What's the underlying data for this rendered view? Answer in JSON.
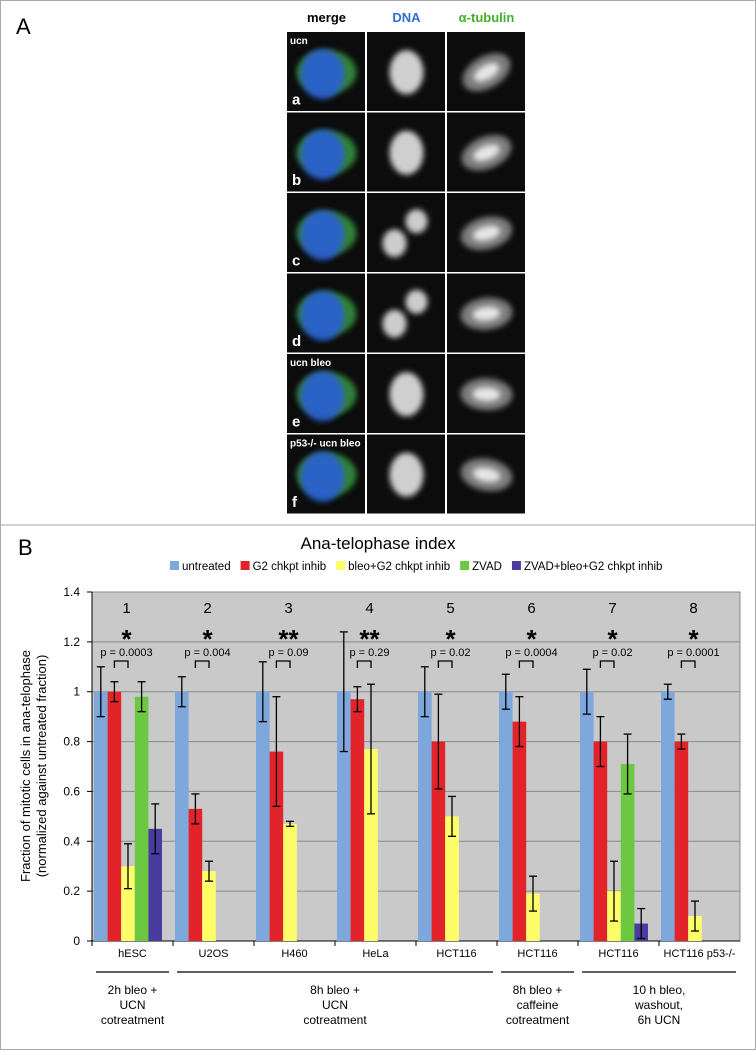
{
  "panel_a": {
    "label": "A",
    "columns": [
      "merge",
      "DNA",
      "α-tubulin"
    ],
    "rows": [
      {
        "letter": "a",
        "label": "ucn"
      },
      {
        "letter": "b"
      },
      {
        "letter": "c"
      },
      {
        "letter": "d"
      },
      {
        "letter": "e",
        "label": "ucn bleo"
      },
      {
        "letter": "f",
        "label": "p53-/- ucn bleo"
      }
    ]
  },
  "panel_b_label": "B",
  "chart_data": {
    "type": "bar",
    "title": "Ana-telophase index",
    "y_label": [
      "Fraction of mitotic cells in ana-telophase",
      "(normalized against untreated fraction)"
    ],
    "categories": [
      "hESC",
      "U2OS",
      "H460",
      "HeLa",
      "HCT116",
      "HCT116",
      "HCT116",
      "HCT116 p53-/-"
    ],
    "group_labels": [
      1,
      2,
      3,
      4,
      5,
      6,
      7,
      8
    ],
    "stars": [
      "*",
      "*",
      "**",
      "**",
      "*",
      "*",
      "*",
      "*"
    ],
    "p_values": [
      "p = 0.0003",
      "p = 0.004",
      "p = 0.09",
      "p = 0.29",
      "p = 0.02",
      "p = 0.0004",
      "p = 0.02",
      "p = 0.0001"
    ],
    "treatments": [
      [
        "2h bleo +",
        "UCN",
        "cotreatment"
      ],
      [
        "8h bleo +",
        "UCN",
        "cotreatment"
      ],
      [
        "8h bleo +",
        "caffeine",
        "cotreatment"
      ],
      [
        "10 h bleo,",
        "washout,",
        "6h UCN"
      ]
    ],
    "series": [
      {
        "name": "untreated",
        "color": "#7ea7dc",
        "values": [
          1,
          1,
          1,
          1,
          1,
          1,
          1,
          1
        ],
        "errors": [
          0.1,
          0.06,
          0.12,
          0.24,
          0.1,
          0.07,
          0.09,
          0.03
        ]
      },
      {
        "name": "G2 chkpt inhib",
        "color": "#e3232a",
        "values": [
          1,
          0.53,
          0.76,
          0.97,
          0.8,
          0.88,
          0.8,
          0.8
        ],
        "errors": [
          0.04,
          0.06,
          0.22,
          0.05,
          0.19,
          0.1,
          0.1,
          0.03
        ]
      },
      {
        "name": "bleo+G2 chkpt inhib",
        "color": "#fdfd6a",
        "values": [
          0.3,
          0.28,
          0.47,
          0.77,
          0.5,
          0.19,
          0.2,
          0.1
        ],
        "errors": [
          0.09,
          0.04,
          0.01,
          0.26,
          0.08,
          0.07,
          0.12,
          0.06
        ]
      },
      {
        "name": "ZVAD",
        "color": "#6cc840",
        "values": [
          0.98,
          null,
          null,
          null,
          null,
          null,
          0.71,
          null
        ],
        "errors": [
          0.06,
          null,
          null,
          null,
          null,
          null,
          0.12,
          null
        ]
      },
      {
        "name": "ZVAD+bleo+G2 chkpt inhib",
        "color": "#4a3c9e",
        "values": [
          0.45,
          null,
          null,
          null,
          null,
          null,
          0.07,
          null
        ],
        "errors": [
          0.1,
          null,
          null,
          null,
          null,
          null,
          0.06,
          null
        ]
      }
    ],
    "ylim": [
      0,
      1.4
    ],
    "yticks": [
      0,
      0.2,
      0.4,
      0.6,
      0.8,
      1,
      1.2,
      1.4
    ],
    "grid": true
  }
}
